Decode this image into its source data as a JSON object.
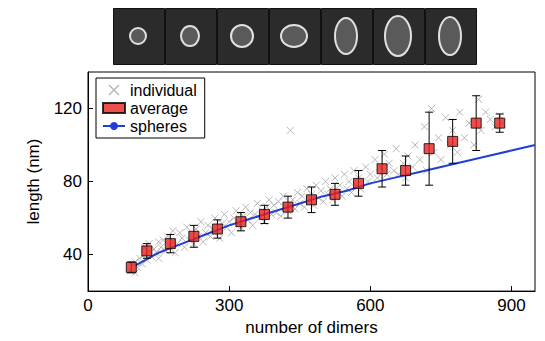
{
  "chart_data": {
    "type": "scatter",
    "x_label": "number of dimers",
    "y_label": "length (nm)",
    "xlim": [
      0,
      950
    ],
    "ylim": [
      20,
      140
    ],
    "xticks": [
      0,
      300,
      600,
      900
    ],
    "yticks": [
      40,
      80,
      120
    ],
    "grid": false,
    "legend": "top-left",
    "series": [
      {
        "name": "individual",
        "type": "scatter",
        "marker": "x",
        "color": "#a6a6a6",
        "x": [
          90,
          95,
          100,
          100,
          105,
          110,
          115,
          120,
          120,
          125,
          130,
          130,
          135,
          140,
          145,
          150,
          150,
          155,
          160,
          165,
          170,
          175,
          180,
          180,
          185,
          190,
          195,
          200,
          205,
          210,
          215,
          220,
          225,
          230,
          235,
          240,
          245,
          250,
          255,
          260,
          265,
          270,
          275,
          280,
          285,
          290,
          295,
          300,
          305,
          310,
          315,
          320,
          325,
          330,
          335,
          340,
          345,
          350,
          355,
          360,
          365,
          370,
          375,
          380,
          385,
          390,
          395,
          400,
          405,
          410,
          415,
          420,
          425,
          430,
          435,
          440,
          445,
          450,
          455,
          460,
          465,
          470,
          475,
          480,
          485,
          490,
          495,
          500,
          505,
          510,
          515,
          520,
          525,
          530,
          535,
          540,
          545,
          550,
          555,
          560,
          565,
          570,
          575,
          580,
          590,
          595,
          600,
          610,
          615,
          620,
          630,
          635,
          640,
          650,
          655,
          660,
          670,
          675,
          680,
          690,
          695,
          705,
          715,
          720,
          730,
          735,
          745,
          750,
          760,
          770,
          775,
          785,
          790,
          800,
          810,
          820,
          830,
          835,
          845,
          855,
          865,
          875,
          880
        ],
        "values": [
          31,
          34,
          30,
          36,
          33,
          38,
          35,
          40,
          44,
          37,
          42,
          46,
          39,
          43,
          41,
          47,
          38,
          44,
          48,
          42,
          50,
          45,
          47,
          53,
          41,
          46,
          52,
          49,
          44,
          55,
          48,
          51,
          46,
          54,
          50,
          58,
          47,
          52,
          56,
          50,
          54,
          60,
          53,
          49,
          57,
          62,
          55,
          58,
          52,
          60,
          64,
          57,
          55,
          61,
          66,
          59,
          63,
          56,
          62,
          68,
          60,
          64,
          58,
          66,
          70,
          62,
          67,
          63,
          69,
          61,
          72,
          66,
          64,
          108,
          70,
          65,
          74,
          68,
          72,
          66,
          76,
          70,
          73,
          67,
          78,
          71,
          75,
          69,
          80,
          73,
          76,
          70,
          82,
          74,
          78,
          72,
          84,
          76,
          80,
          74,
          86,
          78,
          82,
          76,
          88,
          80,
          84,
          92,
          82,
          88,
          95,
          84,
          90,
          86,
          98,
          84,
          90,
          82,
          94,
          88,
          100,
          92,
          110,
          86,
          120,
          96,
          104,
          92,
          115,
          100,
          108,
          96,
          118,
          104,
          112,
          100,
          125,
          108,
          118,
          114,
          110,
          116,
          112
        ]
      },
      {
        "name": "average",
        "type": "scatter",
        "marker": "square",
        "color": "#e8231f",
        "x": [
          92,
          125,
          175,
          225,
          275,
          325,
          375,
          425,
          475,
          525,
          575,
          625,
          675,
          725,
          775,
          825,
          875
        ],
        "values": [
          33,
          42,
          46,
          50,
          54,
          58,
          62,
          66,
          70,
          73,
          79,
          87,
          86,
          98,
          102,
          112,
          112
        ],
        "errors": [
          3,
          4,
          5,
          6,
          5,
          5,
          5,
          6,
          7,
          6,
          7,
          10,
          8,
          20,
          12,
          15,
          5
        ]
      },
      {
        "name": "spheres",
        "type": "line",
        "line_style": "solid",
        "color": "#1f3fd6",
        "x": [
          100,
          150,
          200,
          250,
          300,
          350,
          400,
          450,
          500,
          550,
          600,
          650,
          700,
          750,
          800,
          850,
          900,
          950
        ],
        "values": [
          34,
          41,
          46,
          51,
          56,
          60,
          64,
          68,
          72,
          75,
          79,
          82,
          85,
          88,
          91,
          94,
          97,
          100
        ]
      }
    ]
  }
}
